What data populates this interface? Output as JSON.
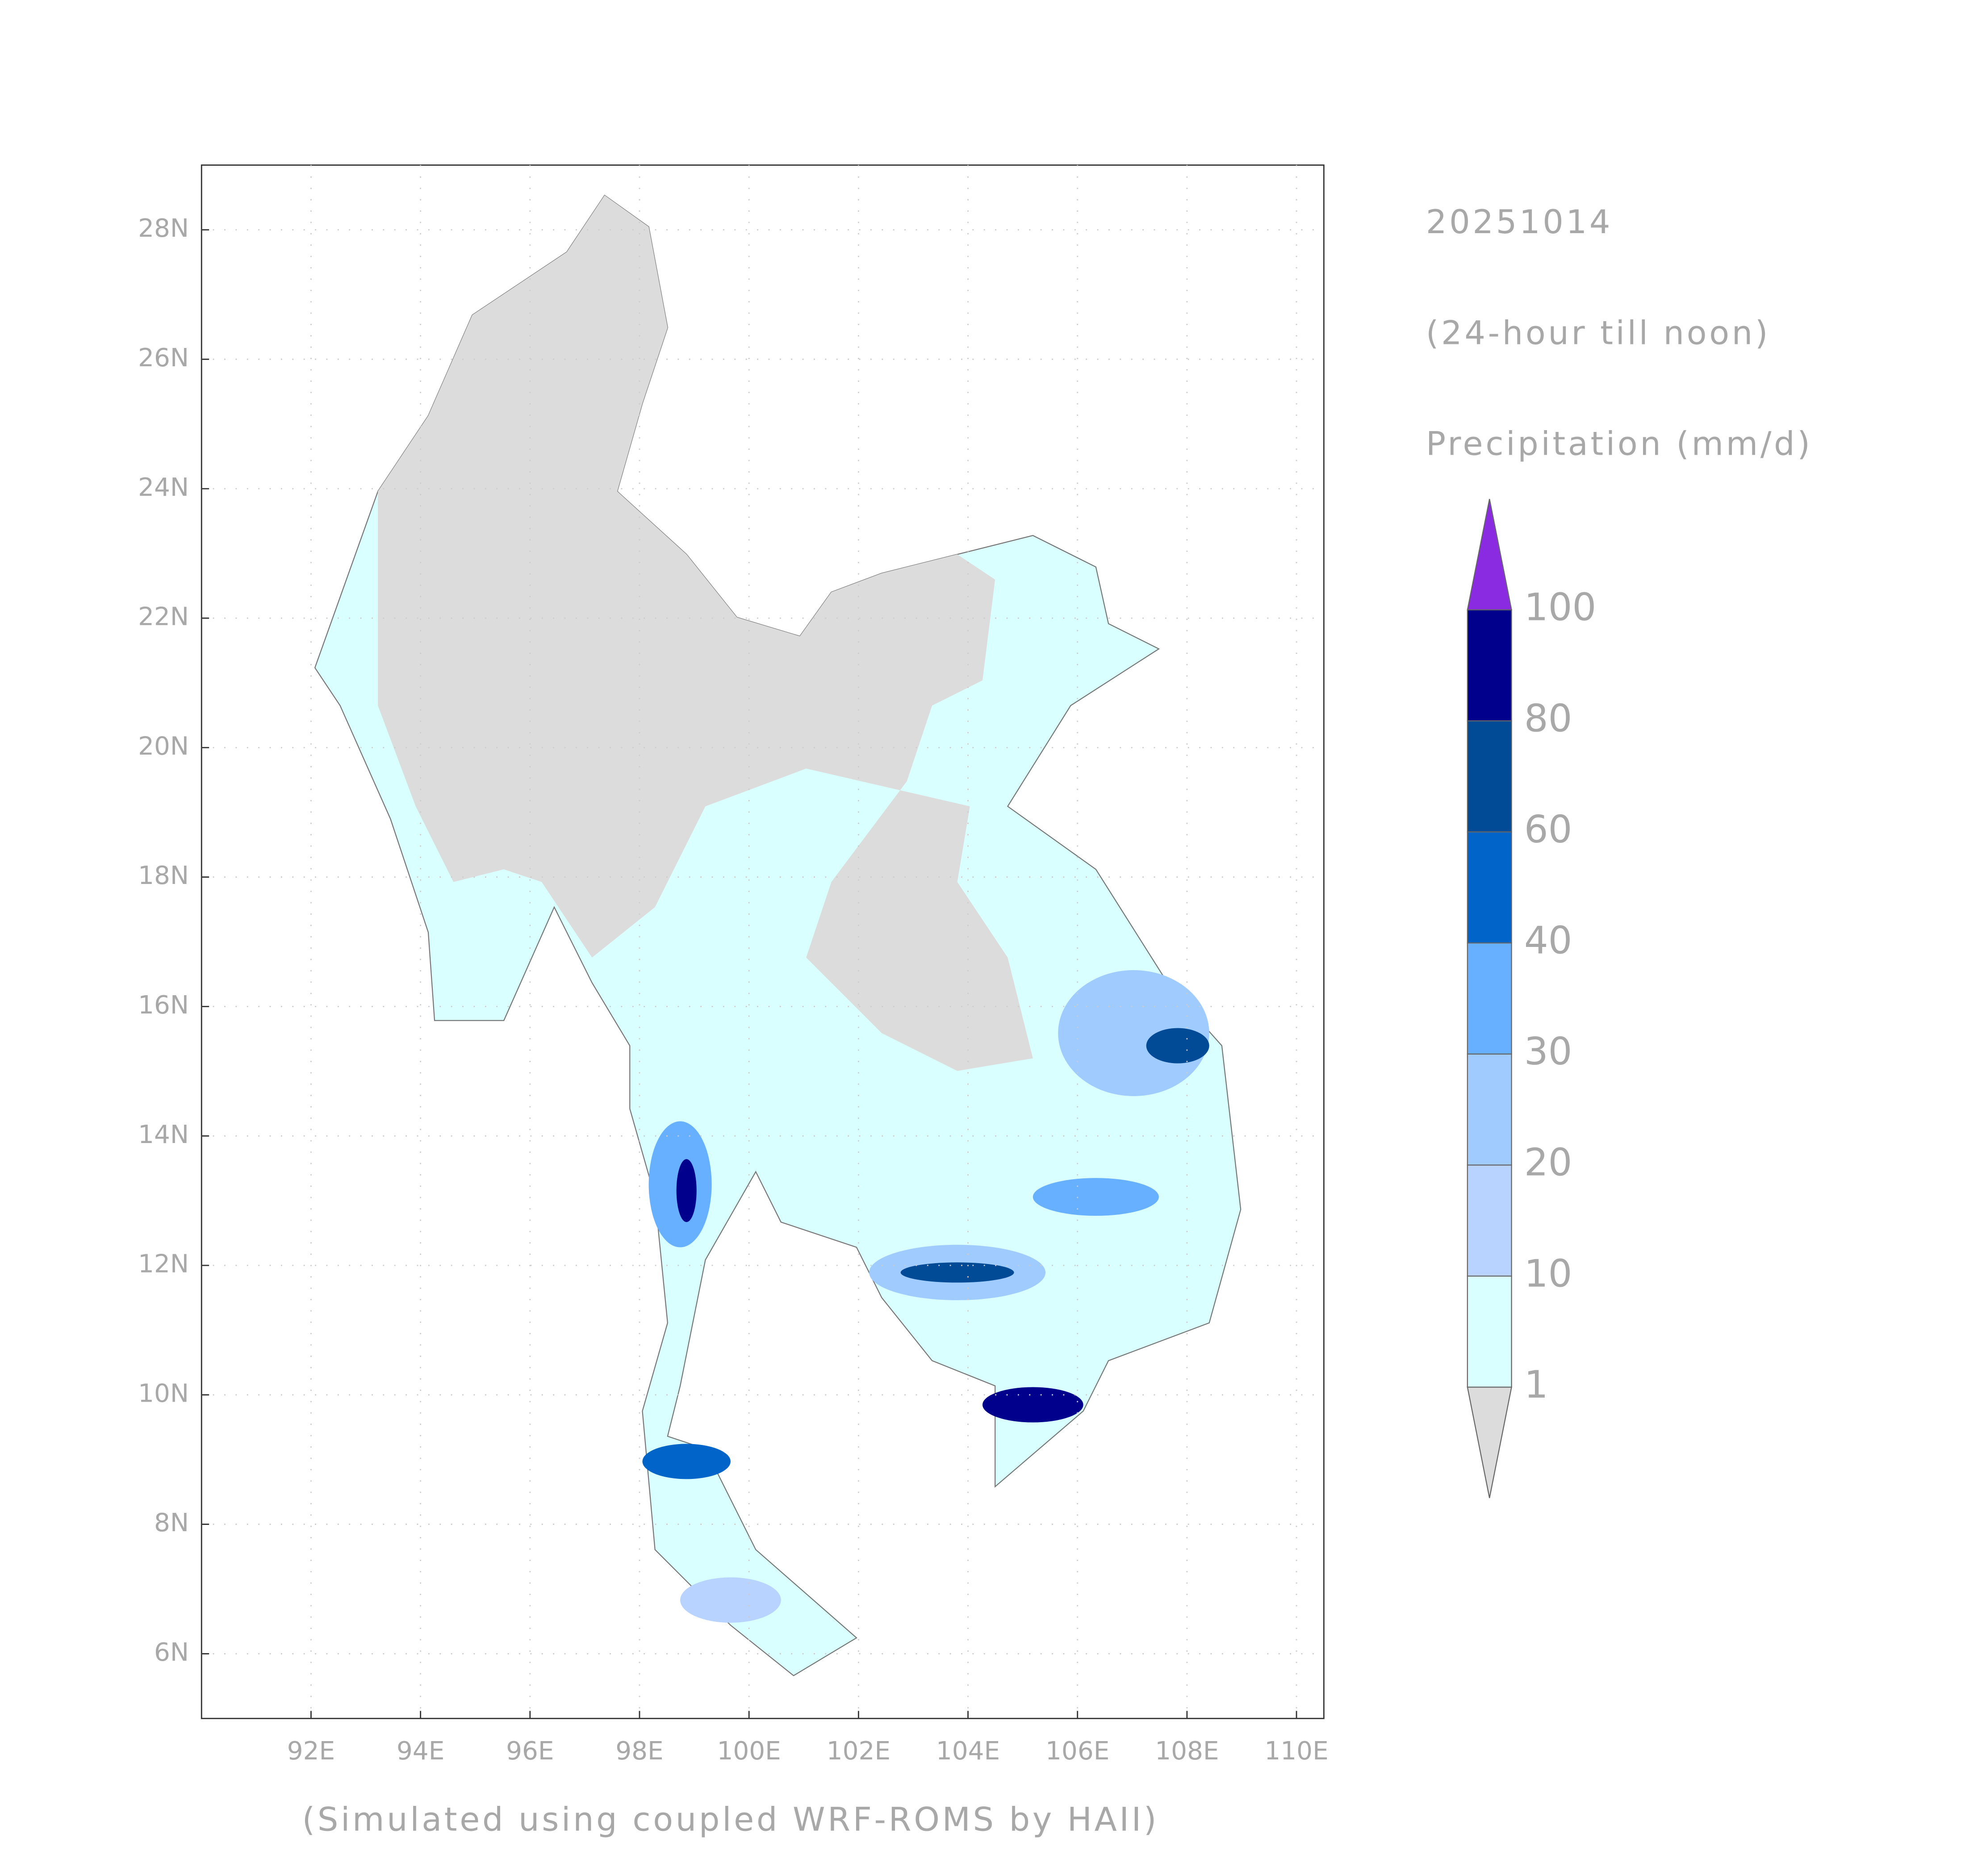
{
  "chart_data": {
    "type": "map",
    "date": "20251014",
    "period": "(24-hour till noon)",
    "variable": "Precipitation (mm/d)",
    "footer": "(Simulated using coupled WRF-ROMS by HAII)",
    "xlim": [
      90,
      110.5
    ],
    "ylim": [
      5,
      29
    ],
    "xticks": [
      {
        "value": 92,
        "label": "92E"
      },
      {
        "value": 94,
        "label": "94E"
      },
      {
        "value": 96,
        "label": "96E"
      },
      {
        "value": 98,
        "label": "98E"
      },
      {
        "value": 100,
        "label": "100E"
      },
      {
        "value": 102,
        "label": "102E"
      },
      {
        "value": 104,
        "label": "104E"
      },
      {
        "value": 106,
        "label": "106E"
      },
      {
        "value": 108,
        "label": "108E"
      },
      {
        "value": 110,
        "label": "110E"
      }
    ],
    "yticks": [
      {
        "value": 6,
        "label": "6N"
      },
      {
        "value": 8,
        "label": "8N"
      },
      {
        "value": 10,
        "label": "10N"
      },
      {
        "value": 12,
        "label": "12N"
      },
      {
        "value": 14,
        "label": "14N"
      },
      {
        "value": 16,
        "label": "16N"
      },
      {
        "value": 18,
        "label": "18N"
      },
      {
        "value": 20,
        "label": "20N"
      },
      {
        "value": 22,
        "label": "22N"
      },
      {
        "value": 24,
        "label": "24N"
      },
      {
        "value": 26,
        "label": "26N"
      },
      {
        "value": 28,
        "label": "28N"
      }
    ],
    "grid": true,
    "levels": [
      1,
      10,
      20,
      30,
      40,
      60,
      80,
      100
    ],
    "colors": [
      "#dcdcdc",
      "#d9ffff",
      "#b8d3ff",
      "#9fcbff",
      "#66b0ff",
      "#0064c8",
      "#004a96",
      "#00008c",
      "#8a2be2"
    ]
  }
}
